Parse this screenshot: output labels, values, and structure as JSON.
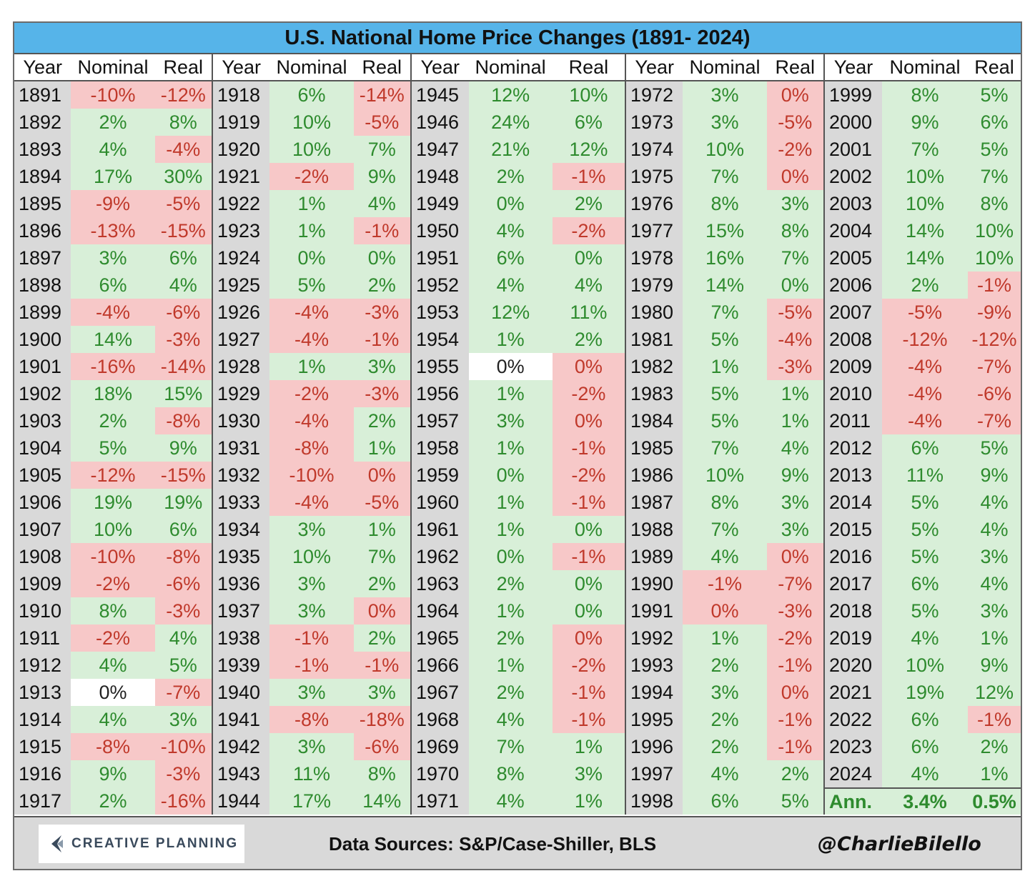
{
  "chart_data": {
    "type": "table",
    "title": "U.S. National Home Price Changes (1891- 2024)",
    "columns": [
      "Year",
      "Nominal",
      "Real"
    ],
    "rows": [
      [
        "1891",
        "-10%",
        "-12%"
      ],
      [
        "1892",
        "2%",
        "8%"
      ],
      [
        "1893",
        "4%",
        "-4%"
      ],
      [
        "1894",
        "17%",
        "30%"
      ],
      [
        "1895",
        "-9%",
        "-5%"
      ],
      [
        "1896",
        "-13%",
        "-15%"
      ],
      [
        "1897",
        "3%",
        "6%"
      ],
      [
        "1898",
        "6%",
        "4%"
      ],
      [
        "1899",
        "-4%",
        "-6%"
      ],
      [
        "1900",
        "14%",
        "-3%"
      ],
      [
        "1901",
        "-16%",
        "-14%"
      ],
      [
        "1902",
        "18%",
        "15%"
      ],
      [
        "1903",
        "2%",
        "-8%"
      ],
      [
        "1904",
        "5%",
        "9%"
      ],
      [
        "1905",
        "-12%",
        "-15%"
      ],
      [
        "1906",
        "19%",
        "19%"
      ],
      [
        "1907",
        "10%",
        "6%"
      ],
      [
        "1908",
        "-10%",
        "-8%"
      ],
      [
        "1909",
        "-2%",
        "-6%"
      ],
      [
        "1910",
        "8%",
        "-3%"
      ],
      [
        "1911",
        "-2%",
        "4%"
      ],
      [
        "1912",
        "4%",
        "5%"
      ],
      [
        "1913",
        "0%",
        "-7%"
      ],
      [
        "1914",
        "4%",
        "3%"
      ],
      [
        "1915",
        "-8%",
        "-10%"
      ],
      [
        "1916",
        "9%",
        "-3%"
      ],
      [
        "1917",
        "2%",
        "-16%"
      ],
      [
        "1918",
        "6%",
        "-14%"
      ],
      [
        "1919",
        "10%",
        "-5%"
      ],
      [
        "1920",
        "10%",
        "7%"
      ],
      [
        "1921",
        "-2%",
        "9%"
      ],
      [
        "1922",
        "1%",
        "4%"
      ],
      [
        "1923",
        "1%",
        "-1%"
      ],
      [
        "1924",
        "0%",
        "0%"
      ],
      [
        "1925",
        "5%",
        "2%"
      ],
      [
        "1926",
        "-4%",
        "-3%"
      ],
      [
        "1927",
        "-4%",
        "-1%"
      ],
      [
        "1928",
        "1%",
        "3%"
      ],
      [
        "1929",
        "-2%",
        "-3%"
      ],
      [
        "1930",
        "-4%",
        "2%"
      ],
      [
        "1931",
        "-8%",
        "1%"
      ],
      [
        "1932",
        "-10%",
        "0%"
      ],
      [
        "1933",
        "-4%",
        "-5%"
      ],
      [
        "1934",
        "3%",
        "1%"
      ],
      [
        "1935",
        "10%",
        "7%"
      ],
      [
        "1936",
        "3%",
        "2%"
      ],
      [
        "1937",
        "3%",
        "0%"
      ],
      [
        "1938",
        "-1%",
        "2%"
      ],
      [
        "1939",
        "-1%",
        "-1%"
      ],
      [
        "1940",
        "3%",
        "3%"
      ],
      [
        "1941",
        "-8%",
        "-18%"
      ],
      [
        "1942",
        "3%",
        "-6%"
      ],
      [
        "1943",
        "11%",
        "8%"
      ],
      [
        "1944",
        "17%",
        "14%"
      ],
      [
        "1945",
        "12%",
        "10%"
      ],
      [
        "1946",
        "24%",
        "6%"
      ],
      [
        "1947",
        "21%",
        "12%"
      ],
      [
        "1948",
        "2%",
        "-1%"
      ],
      [
        "1949",
        "0%",
        "2%"
      ],
      [
        "1950",
        "4%",
        "-2%"
      ],
      [
        "1951",
        "6%",
        "0%"
      ],
      [
        "1952",
        "4%",
        "4%"
      ],
      [
        "1953",
        "12%",
        "11%"
      ],
      [
        "1954",
        "1%",
        "2%"
      ],
      [
        "1955",
        "0%",
        "0%"
      ],
      [
        "1956",
        "1%",
        "-2%"
      ],
      [
        "1957",
        "3%",
        "0%"
      ],
      [
        "1958",
        "1%",
        "-1%"
      ],
      [
        "1959",
        "0%",
        "-2%"
      ],
      [
        "1960",
        "1%",
        "-1%"
      ],
      [
        "1961",
        "1%",
        "0%"
      ],
      [
        "1962",
        "0%",
        "-1%"
      ],
      [
        "1963",
        "2%",
        "0%"
      ],
      [
        "1964",
        "1%",
        "0%"
      ],
      [
        "1965",
        "2%",
        "0%"
      ],
      [
        "1966",
        "1%",
        "-2%"
      ],
      [
        "1967",
        "2%",
        "-1%"
      ],
      [
        "1968",
        "4%",
        "-1%"
      ],
      [
        "1969",
        "7%",
        "1%"
      ],
      [
        "1970",
        "8%",
        "3%"
      ],
      [
        "1971",
        "4%",
        "1%"
      ],
      [
        "1972",
        "3%",
        "0%"
      ],
      [
        "1973",
        "3%",
        "-5%"
      ],
      [
        "1974",
        "10%",
        "-2%"
      ],
      [
        "1975",
        "7%",
        "0%"
      ],
      [
        "1976",
        "8%",
        "3%"
      ],
      [
        "1977",
        "15%",
        "8%"
      ],
      [
        "1978",
        "16%",
        "7%"
      ],
      [
        "1979",
        "14%",
        "0%"
      ],
      [
        "1980",
        "7%",
        "-5%"
      ],
      [
        "1981",
        "5%",
        "-4%"
      ],
      [
        "1982",
        "1%",
        "-3%"
      ],
      [
        "1983",
        "5%",
        "1%"
      ],
      [
        "1984",
        "5%",
        "1%"
      ],
      [
        "1985",
        "7%",
        "4%"
      ],
      [
        "1986",
        "10%",
        "9%"
      ],
      [
        "1987",
        "8%",
        "3%"
      ],
      [
        "1988",
        "7%",
        "3%"
      ],
      [
        "1989",
        "4%",
        "0%"
      ],
      [
        "1990",
        "-1%",
        "-7%"
      ],
      [
        "1991",
        "0%",
        "-3%"
      ],
      [
        "1992",
        "1%",
        "-2%"
      ],
      [
        "1993",
        "2%",
        "-1%"
      ],
      [
        "1994",
        "3%",
        "0%"
      ],
      [
        "1995",
        "2%",
        "-1%"
      ],
      [
        "1996",
        "2%",
        "-1%"
      ],
      [
        "1997",
        "4%",
        "2%"
      ],
      [
        "1998",
        "6%",
        "5%"
      ],
      [
        "1999",
        "8%",
        "5%"
      ],
      [
        "2000",
        "9%",
        "6%"
      ],
      [
        "2001",
        "7%",
        "5%"
      ],
      [
        "2002",
        "10%",
        "7%"
      ],
      [
        "2003",
        "10%",
        "8%"
      ],
      [
        "2004",
        "14%",
        "10%"
      ],
      [
        "2005",
        "14%",
        "10%"
      ],
      [
        "2006",
        "2%",
        "-1%"
      ],
      [
        "2007",
        "-5%",
        "-9%"
      ],
      [
        "2008",
        "-12%",
        "-12%"
      ],
      [
        "2009",
        "-4%",
        "-7%"
      ],
      [
        "2010",
        "-4%",
        "-6%"
      ],
      [
        "2011",
        "-4%",
        "-7%"
      ],
      [
        "2012",
        "6%",
        "5%"
      ],
      [
        "2013",
        "11%",
        "9%"
      ],
      [
        "2014",
        "5%",
        "4%"
      ],
      [
        "2015",
        "5%",
        "4%"
      ],
      [
        "2016",
        "5%",
        "3%"
      ],
      [
        "2017",
        "6%",
        "4%"
      ],
      [
        "2018",
        "5%",
        "3%"
      ],
      [
        "2019",
        "4%",
        "1%"
      ],
      [
        "2020",
        "10%",
        "9%"
      ],
      [
        "2021",
        "19%",
        "12%"
      ],
      [
        "2022",
        "6%",
        "-1%"
      ],
      [
        "2023",
        "6%",
        "2%"
      ],
      [
        "2024",
        "4%",
        "1%"
      ]
    ],
    "cell_styles": {
      "1924|Real": "pos",
      "1951|Real": "pos",
      "1955|Nominal": "zero",
      "1955|Real": "neg",
      "1913|Nominal": "zero",
      "1932|Real": "neg",
      "1937|Real": "neg",
      "1949|Nominal": "pos",
      "1957|Real": "neg",
      "1959|Nominal": "pos",
      "1961|Real": "pos",
      "1962|Nominal": "pos",
      "1963|Real": "pos",
      "1964|Real": "pos",
      "1965|Real": "neg",
      "1972|Real": "neg",
      "1975|Real": "neg",
      "1979|Real": "pos",
      "1989|Real": "neg",
      "1991|Nominal": "neg",
      "1994|Real": "neg",
      "1924|Nominal": "pos"
    },
    "summary": {
      "label": "Ann.",
      "nominal": "3.4%",
      "real": "0.5%"
    },
    "colors": {
      "positive_bg": "#d8efd8",
      "positive_text": "#2e8b2e",
      "negative_bg": "#f7c8c8",
      "negative_text": "#c0392b",
      "title_bg": "#56b4e9"
    }
  },
  "footer": {
    "logo_text": "CREATIVE PLANNING",
    "sources": "Data Sources: S&P/Case-Shiller, BLS",
    "handle": "@CharlieBilello"
  }
}
